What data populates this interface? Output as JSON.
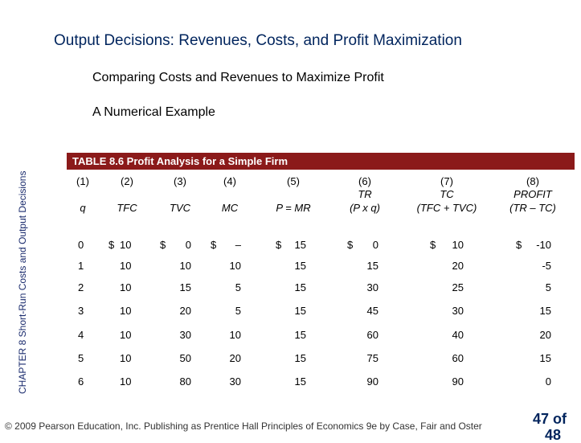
{
  "title": "Output Decisions:  Revenues, Costs, and Profit Maximization",
  "subtitle": "Comparing Costs and Revenues to Maximize Profit",
  "section": "A Numerical Example",
  "side_label": "CHAPTER 8  Short-Run Costs and Output Decisions",
  "table": {
    "caption": "TABLE 8.6  Profit Analysis for a Simple Firm",
    "col_numbers": [
      "(1)",
      "(2)",
      "(3)",
      "(4)",
      "(5)",
      "(6)",
      "(7)",
      "(8)"
    ],
    "col_labels": [
      "q",
      "TFC",
      "TVC",
      "MC",
      "P = MR",
      "TR",
      "TC",
      "PROFIT"
    ],
    "col_sublabels": [
      "",
      "",
      "",
      "",
      "",
      "(P x q)",
      "(TFC + TVC)",
      "(TR – TC)"
    ],
    "dollar_sign": "$",
    "rows": [
      [
        "0",
        "10",
        "0",
        "–",
        "15",
        "0",
        "10",
        "-10"
      ],
      [
        "1",
        "10",
        "10",
        "10",
        "15",
        "15",
        "20",
        "-5"
      ],
      [
        "2",
        "10",
        "15",
        "5",
        "15",
        "30",
        "25",
        "5"
      ],
      [
        "3",
        "10",
        "20",
        "5",
        "15",
        "45",
        "30",
        "15"
      ],
      [
        "4",
        "10",
        "30",
        "10",
        "15",
        "60",
        "40",
        "20"
      ],
      [
        "5",
        "10",
        "50",
        "20",
        "15",
        "75",
        "60",
        "15"
      ],
      [
        "6",
        "10",
        "80",
        "30",
        "15",
        "90",
        "90",
        "0"
      ]
    ]
  },
  "footer": "© 2009 Pearson Education, Inc. Publishing as Prentice Hall   Principles of Economics 9e by Case, Fair and Oster",
  "page_number": "47 of",
  "page_total": "48"
}
